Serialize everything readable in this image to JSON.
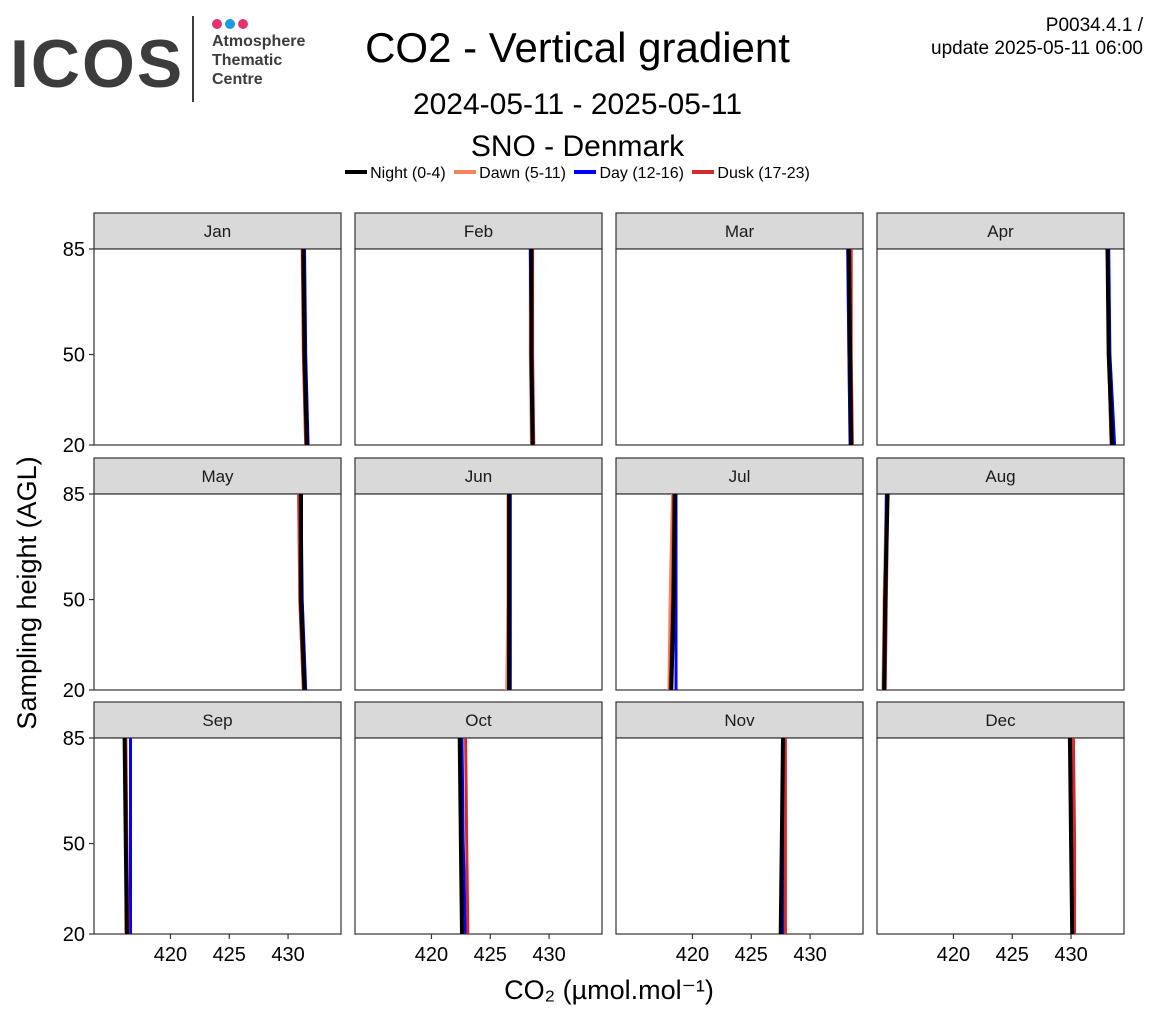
{
  "logo": {
    "wordmark": "ICOS",
    "lines": [
      "Atmosphere",
      "Thematic",
      "Centre"
    ],
    "dot_colors": [
      "#e6336f",
      "#1a9be0",
      "#e6336f"
    ]
  },
  "header": {
    "title": "CO2 - Vertical gradient",
    "date_range": "2024-05-11 - 2025-05-11",
    "station": "SNO - Denmark",
    "product_id": "P0034.4.1 /",
    "update_text": "update  2025-05-11 06:00"
  },
  "chart_data": {
    "type": "line",
    "ylabel": "Sampling height (AGL)",
    "xlabel": "CO₂ (µmol.mol⁻¹)",
    "x_ticks": [
      420,
      425,
      430
    ],
    "y_ticks": [
      20,
      50,
      85
    ],
    "xlim": [
      413.5,
      434.5
    ],
    "ylim": [
      20,
      85
    ],
    "heights": [
      20,
      50,
      85
    ],
    "legend_position": "top",
    "series": [
      {
        "name": "Night (0-4)",
        "color": "#000000"
      },
      {
        "name": "Dawn (5-11)",
        "color": "#f4845f"
      },
      {
        "name": "Day (12-16)",
        "color": "#0000ff"
      },
      {
        "name": "Dusk (17-23)",
        "color": "#d22b2b"
      }
    ],
    "panels": [
      {
        "label": "Jan",
        "night": [
          431.6,
          431.4,
          431.3
        ],
        "dawn": [
          431.5,
          431.3,
          431.3
        ],
        "day": [
          431.7,
          431.5,
          431.4
        ],
        "dusk": [
          431.5,
          431.3,
          431.2
        ]
      },
      {
        "label": "Feb",
        "night": [
          428.6,
          428.5,
          428.5
        ],
        "dawn": [
          428.5,
          428.4,
          428.4
        ],
        "day": [
          428.6,
          428.5,
          428.4
        ],
        "dusk": [
          428.7,
          428.6,
          428.6
        ]
      },
      {
        "label": "Mar",
        "night": [
          433.5,
          433.4,
          433.3
        ],
        "dawn": [
          433.4,
          433.3,
          433.2
        ],
        "day": [
          433.4,
          433.3,
          433.2
        ],
        "dusk": [
          433.6,
          433.5,
          433.5
        ]
      },
      {
        "label": "Apr",
        "night": [
          433.5,
          433.2,
          433.1
        ],
        "dawn": [
          433.4,
          433.2,
          433.1
        ],
        "day": [
          433.7,
          433.3,
          433.2
        ],
        "dusk": [
          433.4,
          433.2,
          433.1
        ]
      },
      {
        "label": "May",
        "night": [
          431.4,
          431.1,
          431.1
        ],
        "dawn": [
          431.3,
          431.0,
          430.9
        ],
        "day": [
          431.5,
          431.2,
          431.1
        ],
        "dusk": [
          431.3,
          431.0,
          430.9
        ]
      },
      {
        "label": "Jun",
        "night": [
          426.6,
          426.6,
          426.6
        ],
        "dawn": [
          426.4,
          426.5,
          426.5
        ],
        "day": [
          426.7,
          426.7,
          426.7
        ],
        "dusk": [
          426.6,
          426.6,
          426.6
        ]
      },
      {
        "label": "Jul",
        "night": [
          418.2,
          418.4,
          418.5
        ],
        "dawn": [
          418.0,
          418.1,
          418.3
        ],
        "day": [
          418.6,
          418.6,
          418.6
        ],
        "dusk": [
          418.1,
          418.3,
          418.4
        ]
      },
      {
        "label": "Aug",
        "night": [
          414.1,
          414.2,
          414.4
        ],
        "dawn": [
          414.0,
          414.1,
          414.3
        ],
        "day": [
          414.1,
          414.2,
          414.3
        ],
        "dusk": [
          414.2,
          414.3,
          414.4
        ]
      },
      {
        "label": "Sep",
        "night": [
          416.3,
          416.2,
          416.1
        ],
        "dawn": [
          416.2,
          416.2,
          416.1
        ],
        "day": [
          416.6,
          416.6,
          416.6
        ],
        "dusk": [
          416.4,
          416.3,
          416.2
        ]
      },
      {
        "label": "Oct",
        "night": [
          422.6,
          422.5,
          422.4
        ],
        "dawn": [
          422.7,
          422.6,
          422.5
        ],
        "day": [
          422.9,
          422.7,
          422.6
        ],
        "dusk": [
          423.1,
          423.0,
          422.9
        ]
      },
      {
        "label": "Nov",
        "night": [
          427.5,
          427.6,
          427.7
        ],
        "dawn": [
          427.6,
          427.7,
          427.8
        ],
        "day": [
          427.7,
          427.8,
          427.8
        ],
        "dusk": [
          427.9,
          427.9,
          427.9
        ]
      },
      {
        "label": "Dec",
        "night": [
          430.1,
          430.0,
          429.9
        ],
        "dawn": [
          430.1,
          430.1,
          430.0
        ],
        "day": [
          430.2,
          430.1,
          430.1
        ],
        "dusk": [
          430.3,
          430.3,
          430.2
        ]
      }
    ]
  }
}
